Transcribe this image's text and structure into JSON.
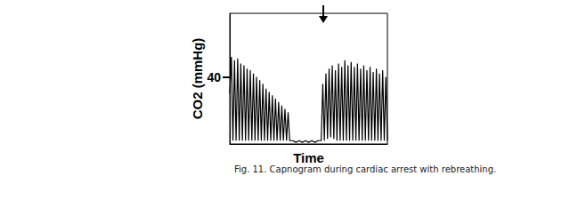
{
  "chart_data": {
    "type": "line",
    "caption": "Fig. 11. Capnogram during cardiac arrest with rebreathing.",
    "xlabel": "Time",
    "ylabel": "CO2 (mmHg)",
    "x": [
      0,
      1,
      2,
      3,
      4,
      5,
      6,
      7,
      8,
      9,
      10,
      11,
      12,
      13,
      14,
      15,
      16,
      17,
      18,
      19,
      20,
      21,
      22,
      23,
      24,
      25,
      26,
      27,
      28,
      29,
      30,
      31,
      32,
      33,
      34,
      35,
      36,
      37,
      38,
      40,
      42,
      44,
      46,
      48,
      50,
      52,
      54,
      56,
      58,
      59,
      60,
      61,
      62,
      63,
      64,
      65,
      66,
      67,
      68,
      69,
      70,
      71,
      72,
      73,
      74,
      75,
      76,
      77,
      78,
      79,
      80,
      81,
      82,
      83,
      84,
      85,
      86,
      87,
      88,
      89,
      90,
      91,
      92,
      93,
      94,
      95,
      96,
      97,
      98,
      99,
      100
    ],
    "values": [
      30,
      52,
      2,
      50,
      2,
      51,
      2,
      48,
      2,
      47,
      2,
      45,
      2,
      44,
      2,
      42,
      2,
      40,
      2,
      38,
      2,
      36,
      2,
      33,
      2,
      31,
      2,
      29,
      2,
      27,
      2,
      25,
      2,
      23,
      2,
      21,
      2,
      19,
      2,
      2,
      1,
      2,
      1,
      2,
      1,
      2,
      1,
      2,
      2,
      36,
      2,
      42,
      3,
      45,
      4,
      47,
      3,
      44,
      2,
      48,
      2,
      46,
      2,
      50,
      2,
      47,
      2,
      49,
      2,
      46,
      2,
      48,
      2,
      45,
      2,
      47,
      2,
      44,
      2,
      46,
      2,
      43,
      2,
      45,
      2,
      42,
      2,
      44,
      2,
      40,
      2
    ],
    "color": "#000000",
    "xlim": [
      0,
      100
    ],
    "ylim": [
      0,
      78
    ],
    "yticks": [
      40
    ],
    "tick_labels": "y",
    "grid": false
  }
}
